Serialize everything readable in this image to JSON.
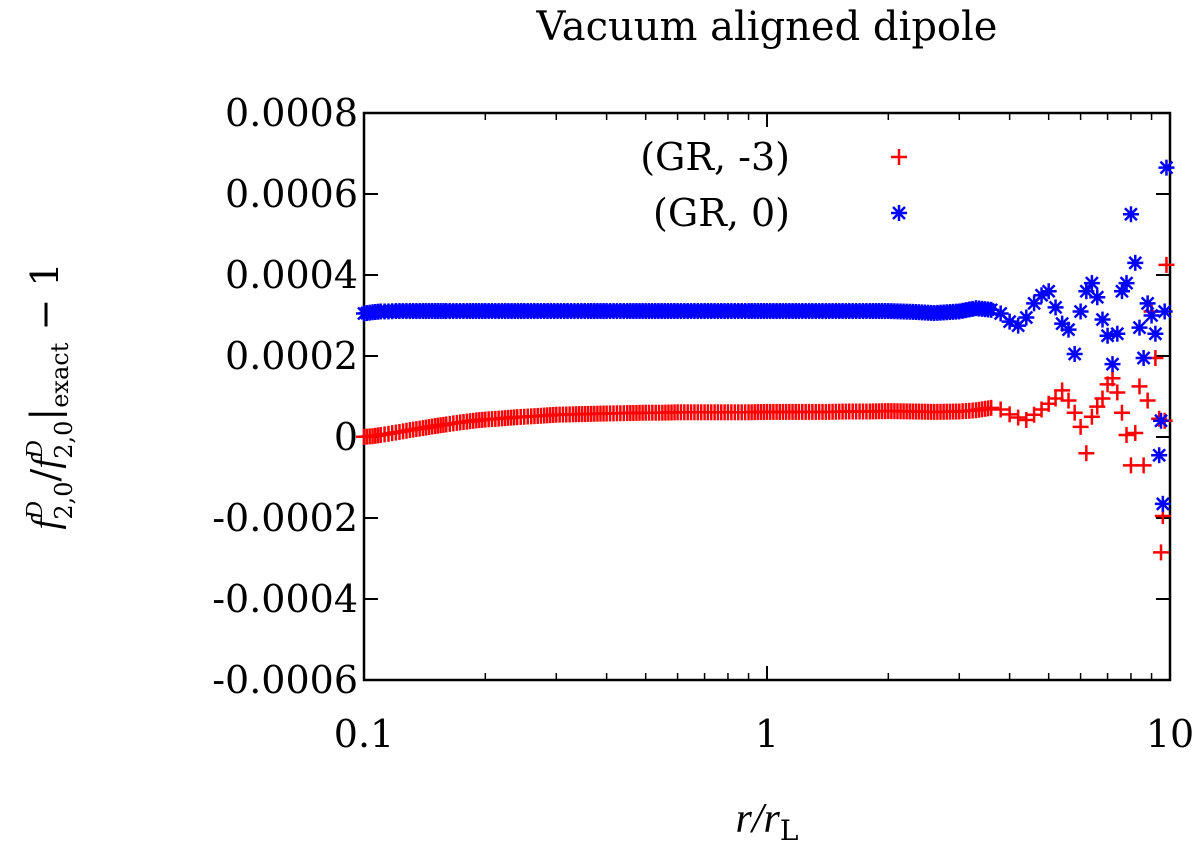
{
  "chart_data": {
    "type": "scatter",
    "title": "Vacuum aligned dipole",
    "xlabel": "r/r_L",
    "ylabel": "f^D_{2,0}/f^D_{2,0}|_exact − 1",
    "xscale": "log",
    "xlim": [
      0.1,
      10
    ],
    "ylim": [
      -0.0006,
      0.0008
    ],
    "xticks": [
      {
        "value": 0.1,
        "label": "0.1"
      },
      {
        "value": 1,
        "label": "1"
      },
      {
        "value": 10,
        "label": "10"
      }
    ],
    "yticks": [
      {
        "value": 0.0008,
        "label": "0.0008"
      },
      {
        "value": 0.0006,
        "label": "0.0006"
      },
      {
        "value": 0.0004,
        "label": "0.0004"
      },
      {
        "value": 0.0002,
        "label": "0.0002"
      },
      {
        "value": 0,
        "label": "0"
      },
      {
        "value": -0.0002,
        "label": "-0.0002"
      },
      {
        "value": -0.0004,
        "label": "-0.0004"
      },
      {
        "value": -0.0006,
        "label": "-0.0006"
      }
    ],
    "legend_position": "top-center",
    "grid": false,
    "series": [
      {
        "name": "(GR, -3)",
        "color": "#ff0000",
        "marker": "plus",
        "x": [
          0.1,
          0.105,
          0.11,
          0.115,
          0.12,
          0.125,
          0.13,
          0.14,
          0.15,
          0.16,
          0.17,
          0.18,
          0.19,
          0.2,
          0.22,
          0.24,
          0.26,
          0.28,
          0.3,
          0.33,
          0.36,
          0.4,
          0.45,
          0.5,
          0.55,
          0.6,
          0.7,
          0.8,
          0.9,
          1.0,
          1.2,
          1.4,
          1.6,
          1.8,
          2.0,
          2.3,
          2.6,
          3.0,
          3.3,
          3.6,
          3.8,
          4.0,
          4.2,
          4.4,
          4.6,
          4.8,
          5.0,
          5.2,
          5.4,
          5.6,
          5.8,
          6.0,
          6.2,
          6.4,
          6.6,
          6.8,
          7.0,
          7.2,
          7.4,
          7.6,
          7.8,
          8.0,
          8.2,
          8.4,
          8.6,
          8.8,
          9.0,
          9.2,
          9.4,
          9.5,
          9.6,
          9.7,
          9.8
        ],
        "y": [
          5e-07,
          2e-06,
          5e-06,
          8e-06,
          1.1e-05,
          1.4e-05,
          1.7e-05,
          2.2e-05,
          2.7e-05,
          3.1e-05,
          3.5e-05,
          3.8e-05,
          4.1e-05,
          4.3e-05,
          4.6e-05,
          4.9e-05,
          5.1e-05,
          5.3e-05,
          5.5e-05,
          5.6e-05,
          5.7e-05,
          5.8e-05,
          5.9e-05,
          6e-05,
          6e-05,
          6.1e-05,
          6.1e-05,
          6.1e-05,
          6.1e-05,
          6.2e-05,
          6.2e-05,
          6.2e-05,
          6.3e-05,
          6.3e-05,
          6.4e-05,
          6.3e-05,
          6.2e-05,
          6.3e-05,
          6.6e-05,
          7.2e-05,
          6.8e-05,
          5.6e-05,
          4.8e-05,
          4.2e-05,
          5.5e-05,
          6.8e-05,
          8.2e-05,
          9.5e-05,
          0.000115,
          9e-05,
          6e-05,
          2.5e-05,
          -4e-05,
          5e-05,
          7.5e-05,
          9.5e-05,
          0.00013,
          0.000145,
          0.00011,
          6e-05,
          5e-06,
          -7e-05,
          1e-05,
          0.000125,
          -7e-05,
          9e-05,
          0.00031,
          0.000195,
          4.5e-05,
          -0.000285,
          -0.000195,
          4e-05,
          0.000425
        ]
      },
      {
        "name": "(GR, 0)",
        "color": "#0000ff",
        "marker": "star",
        "x": [
          0.1,
          0.105,
          0.11,
          0.115,
          0.12,
          0.13,
          0.14,
          0.15,
          0.16,
          0.18,
          0.2,
          0.22,
          0.25,
          0.28,
          0.32,
          0.36,
          0.4,
          0.45,
          0.5,
          0.6,
          0.7,
          0.8,
          0.9,
          1.0,
          1.2,
          1.4,
          1.6,
          1.8,
          2.0,
          2.3,
          2.6,
          3.0,
          3.3,
          3.6,
          3.8,
          4.0,
          4.2,
          4.4,
          4.6,
          4.8,
          5.0,
          5.2,
          5.4,
          5.6,
          5.8,
          6.0,
          6.2,
          6.4,
          6.6,
          6.8,
          7.0,
          7.2,
          7.4,
          7.6,
          7.8,
          8.0,
          8.2,
          8.4,
          8.6,
          8.8,
          9.0,
          9.2,
          9.4,
          9.5,
          9.6,
          9.7,
          9.8
        ],
        "y": [
          0.000305,
          0.000308,
          0.00031,
          0.00031,
          0.000311,
          0.000311,
          0.000311,
          0.000311,
          0.000311,
          0.000311,
          0.000311,
          0.000311,
          0.000311,
          0.000311,
          0.000311,
          0.000311,
          0.000311,
          0.000311,
          0.000311,
          0.000311,
          0.000311,
          0.000311,
          0.000311,
          0.000311,
          0.000311,
          0.000311,
          0.000311,
          0.000311,
          0.000311,
          0.000309,
          0.000306,
          0.00031,
          0.000318,
          0.000314,
          0.000305,
          0.000285,
          0.000275,
          0.000295,
          0.00033,
          0.00035,
          0.00036,
          0.00032,
          0.00028,
          0.000265,
          0.000205,
          0.00031,
          0.00036,
          0.00038,
          0.000345,
          0.00029,
          0.00025,
          0.00018,
          0.000255,
          0.00036,
          0.00038,
          0.00055,
          0.00043,
          0.00027,
          0.000195,
          0.00033,
          0.0003,
          0.000255,
          -4.5e-05,
          4e-05,
          -0.000165,
          0.00031,
          0.000665
        ]
      }
    ]
  }
}
